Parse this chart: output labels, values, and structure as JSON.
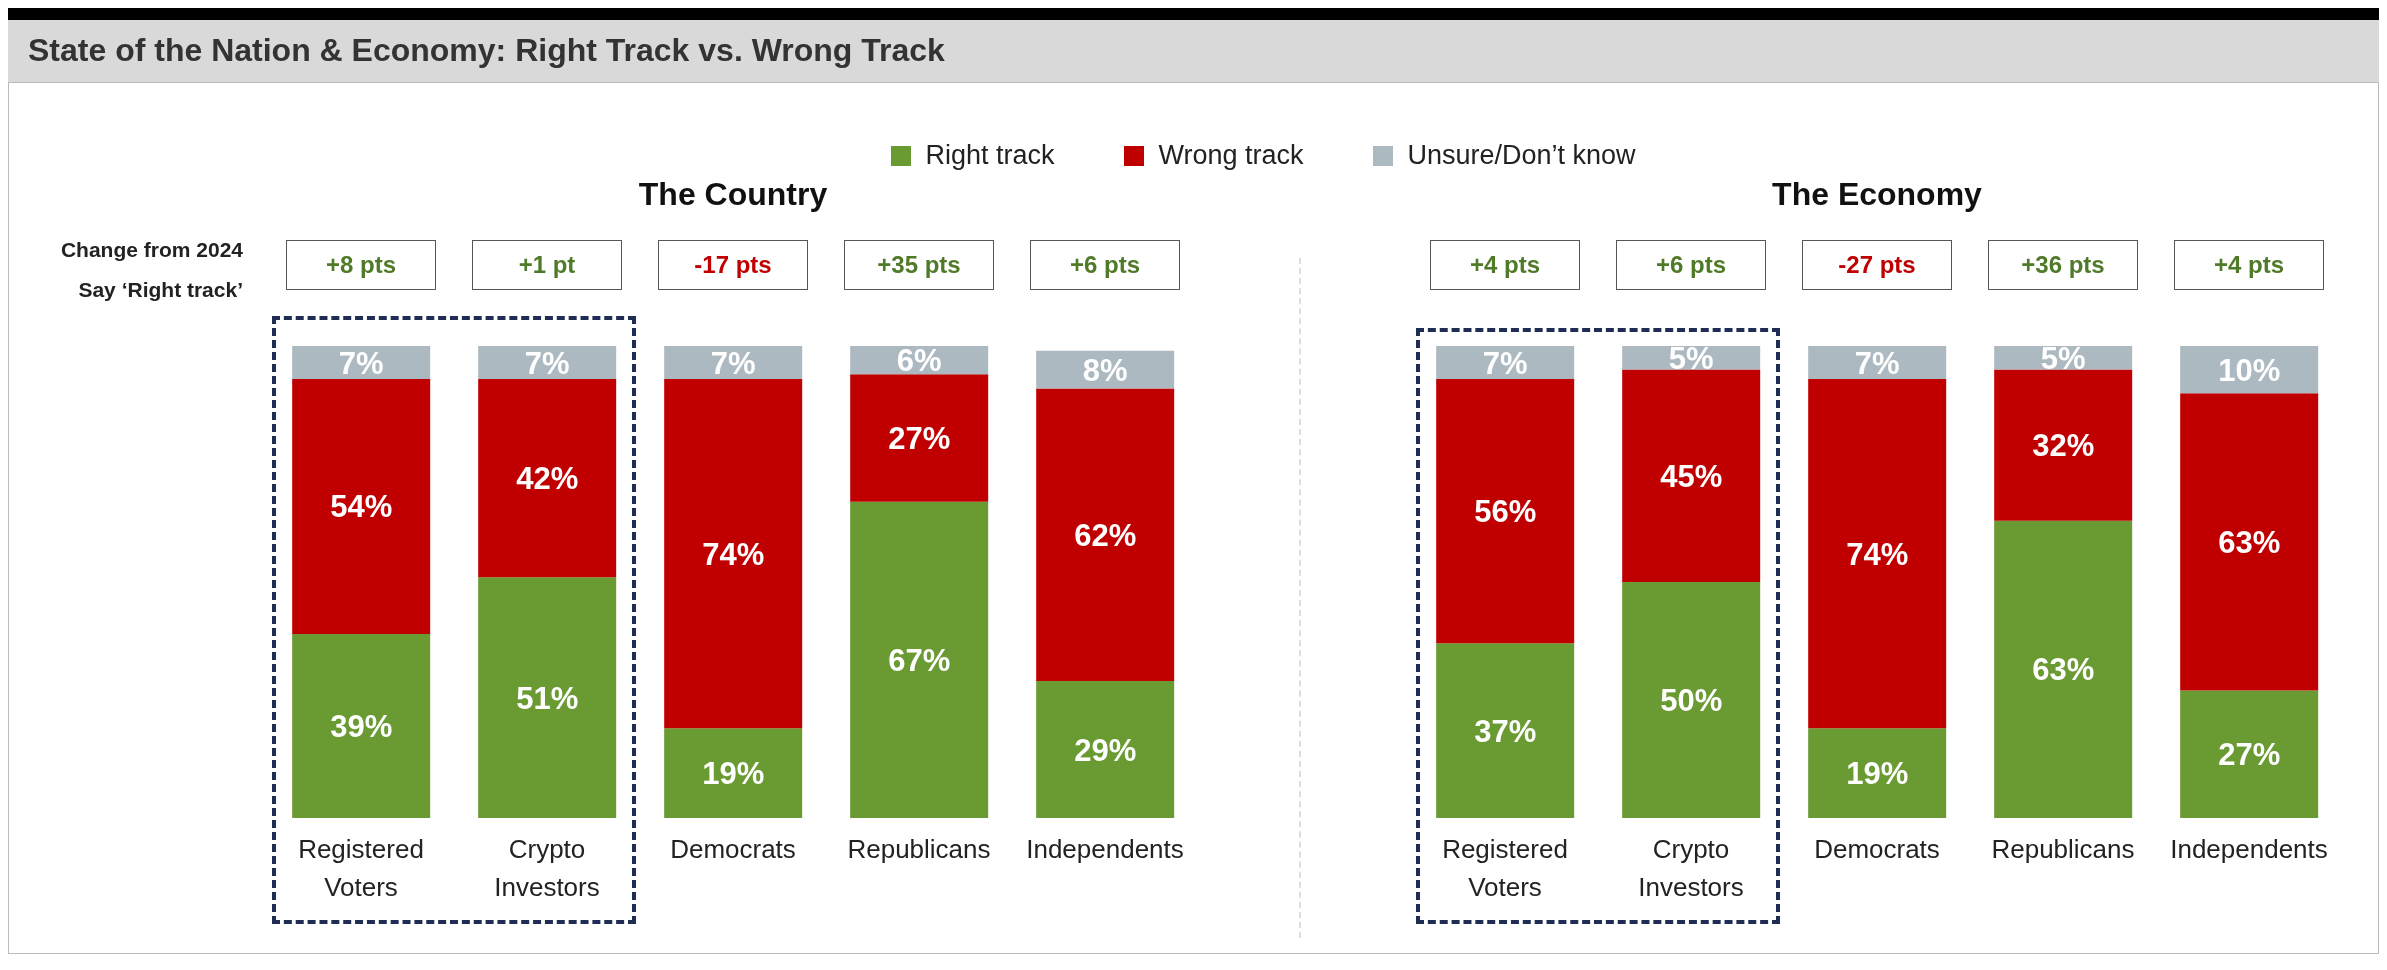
{
  "chart_data": [
    {
      "type": "bar",
      "stacked": true,
      "title": "The Country",
      "legend": "top",
      "tick_labels": "x",
      "categories": [
        "Registered Voters",
        "Crypto Investors",
        "Democrats",
        "Republicans",
        "Independents"
      ],
      "series": [
        {
          "name": "Right track",
          "color": "#6a9a32",
          "values": [
            39,
            51,
            19,
            67,
            29
          ],
          "value_labels": [
            "39%",
            "51%",
            "19%",
            "67%",
            "29%"
          ]
        },
        {
          "name": "Wrong track",
          "color": "#c00000",
          "values": [
            54,
            42,
            74,
            27,
            62
          ],
          "value_labels": [
            "54%",
            "42%",
            "74%",
            "27%",
            "62%"
          ]
        },
        {
          "name": "Unsure/Don’t know",
          "color": "#adb9c1",
          "values": [
            7,
            7,
            7,
            6,
            8
          ],
          "value_labels": [
            "7%",
            "7%",
            "7%",
            "6%",
            "8%"
          ]
        }
      ],
      "annotations": [
        "State of the Nation & Economy: Right Track vs. Wrong Track",
        "Change from 2024 Say ‘Right track’",
        "+8 pts",
        "+1 pt",
        "-17 pts",
        "+35 pts",
        "+6 pts"
      ]
    },
    {
      "type": "bar",
      "stacked": true,
      "title": "The Economy",
      "tick_labels": "x",
      "categories": [
        "Registered Voters",
        "Crypto Investors",
        "Democrats",
        "Republicans",
        "Independents"
      ],
      "series": [
        {
          "color": "#6a9a32",
          "values": [
            37,
            50,
            19,
            63,
            27
          ],
          "value_labels": [
            "37%",
            "50%",
            "19%",
            "63%",
            "27%"
          ]
        },
        {
          "color": "#c00000",
          "values": [
            56,
            45,
            74,
            32,
            63
          ],
          "value_labels": [
            "56%",
            "45%",
            "74%",
            "32%",
            "63%"
          ]
        },
        {
          "color": "#adb9c1",
          "values": [
            7,
            5,
            7,
            5,
            10
          ],
          "value_labels": [
            "7%",
            "5%",
            "7%",
            "5%",
            "10%"
          ]
        }
      ],
      "annotations": [
        "+4 pts",
        "+6 pts",
        "-27 pts",
        "+36 pts",
        "+4 pts"
      ]
    }
  ]
}
